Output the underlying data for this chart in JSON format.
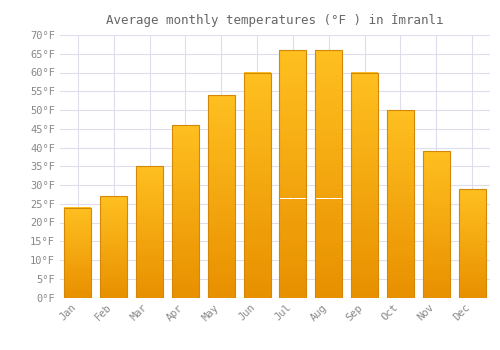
{
  "title": "Average monthly temperatures (°F ) in İmranlı",
  "months": [
    "Jan",
    "Feb",
    "Mar",
    "Apr",
    "May",
    "Jun",
    "Jul",
    "Aug",
    "Sep",
    "Oct",
    "Nov",
    "Dec"
  ],
  "values": [
    24,
    27,
    35,
    46,
    54,
    60,
    66,
    66,
    60,
    50,
    39,
    29
  ],
  "bar_color_top": "#FFC020",
  "bar_color_bottom": "#E89000",
  "bar_edge_color": "#D4880A",
  "background_color": "#FFFFFF",
  "plot_bg_color": "#FFFFFF",
  "grid_color": "#DDDDEE",
  "text_color": "#888888",
  "title_color": "#666666",
  "ylim": [
    0,
    70
  ],
  "ytick_step": 5,
  "figsize": [
    5.0,
    3.5
  ],
  "dpi": 100
}
